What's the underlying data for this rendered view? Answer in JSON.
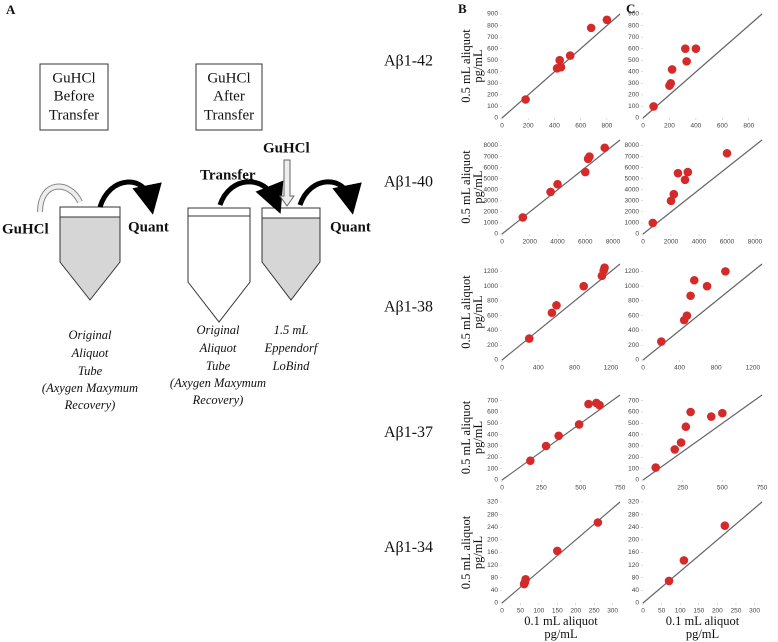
{
  "figure": {
    "panel_labels": [
      "A",
      "B",
      "C"
    ],
    "row_labels": [
      "Aβ1-42",
      "Aβ1-40",
      "Aβ1-38",
      "Aβ1-37",
      "Aβ1-34"
    ]
  },
  "diagram": {
    "box_before": [
      "GuHCl",
      "Before",
      "Transfer"
    ],
    "box_after": [
      "GuHCl",
      "After",
      "Transfer"
    ],
    "guhcl_in": "GuHCl",
    "quant_1": "Quant",
    "transfer": "Transfer",
    "guhcl_add": "GuHCl",
    "quant_2": "Quant",
    "tube_1": [
      "Original",
      "Aliquot",
      "Tube",
      "(Axygen Maxymum",
      "Recovery)"
    ],
    "tube_2": [
      "Original",
      "Aliquot",
      "Tube",
      "(Axygen Maxymum",
      "Recovery)"
    ],
    "tube_3": [
      "1.5 mL",
      "Eppendorf",
      "LoBind"
    ]
  },
  "chart_data": [
    {
      "type": "scatter",
      "ylabel": [
        "0.5 mL aliquot",
        "pg/mL"
      ],
      "color": "#d42a2a",
      "identity_line": true,
      "x": [
        180,
        420,
        440,
        450,
        520,
        680,
        800
      ],
      "values": [
        160,
        430,
        500,
        440,
        540,
        780,
        850
      ],
      "xlim": [
        0,
        900
      ],
      "ylim": [
        0,
        900
      ],
      "xticks": [
        0,
        200,
        400,
        600,
        800
      ],
      "yticks": [
        0,
        100,
        200,
        300,
        400,
        500,
        600,
        700,
        800,
        900
      ]
    },
    {
      "type": "scatter",
      "ylabel": [
        "0.5 mL aliquot",
        "pg/mL"
      ],
      "color": "#d42a2a",
      "identity_line": true,
      "x": [
        1500,
        3500,
        4000,
        6000,
        6200,
        6300,
        7400
      ],
      "values": [
        1500,
        3800,
        4500,
        5600,
        6800,
        7000,
        7800
      ],
      "xlim": [
        0,
        8500
      ],
      "ylim": [
        0,
        8500
      ],
      "xticks": [
        0,
        2000,
        4000,
        6000,
        8000
      ],
      "yticks": [
        0,
        1000,
        2000,
        3000,
        4000,
        5000,
        6000,
        7000,
        8000
      ]
    },
    {
      "type": "scatter",
      "ylabel": [
        "0.5 mL aliquot",
        "pg/mL"
      ],
      "color": "#d42a2a",
      "identity_line": true,
      "x": [
        300,
        550,
        600,
        900,
        1100,
        1120,
        1130
      ],
      "values": [
        290,
        640,
        740,
        1000,
        1140,
        1210,
        1250
      ],
      "xlim": [
        0,
        1300
      ],
      "ylim": [
        0,
        1300
      ],
      "xticks": [
        0,
        400,
        800,
        1200
      ],
      "yticks": [
        0,
        200,
        400,
        600,
        800,
        1000,
        1200
      ]
    },
    {
      "type": "scatter",
      "ylabel": [
        "0.5 mL aliquot",
        "pg/mL"
      ],
      "color": "#d42a2a",
      "identity_line": true,
      "x": [
        180,
        280,
        360,
        490,
        550,
        600,
        620
      ],
      "values": [
        170,
        300,
        390,
        490,
        670,
        680,
        660
      ],
      "xlim": [
        0,
        750
      ],
      "ylim": [
        0,
        750
      ],
      "xticks": [
        0,
        250,
        500,
        750
      ],
      "yticks": [
        0,
        100,
        200,
        300,
        400,
        500,
        600,
        700
      ]
    },
    {
      "type": "scatter",
      "ylabel": [
        "0.5 mL aliquot",
        "pg/mL"
      ],
      "xlabel": [
        "0.1 mL aliquot",
        "pg/mL"
      ],
      "color": "#d42a2a",
      "identity_line": true,
      "x": [
        60,
        62,
        64,
        150,
        260
      ],
      "values": [
        60,
        65,
        75,
        165,
        255
      ],
      "xlim": [
        0,
        320
      ],
      "ylim": [
        0,
        320
      ],
      "xticks": [
        0,
        50,
        100,
        150,
        200,
        250,
        300
      ],
      "yticks": [
        0,
        40,
        80,
        120,
        160,
        200,
        240,
        280,
        320
      ]
    },
    {
      "type": "scatter",
      "color": "#d42a2a",
      "identity_line": true,
      "x": [
        80,
        200,
        210,
        220,
        320,
        330,
        400
      ],
      "values": [
        100,
        280,
        300,
        420,
        600,
        490,
        600
      ],
      "xlim": [
        0,
        900
      ],
      "ylim": [
        0,
        900
      ],
      "xticks": [
        0,
        200,
        400,
        600,
        800
      ],
      "yticks": [
        0,
        100,
        200,
        300,
        400,
        500,
        600,
        700,
        800,
        900
      ]
    },
    {
      "type": "scatter",
      "color": "#d42a2a",
      "identity_line": true,
      "x": [
        700,
        2000,
        2200,
        2500,
        3000,
        3200,
        6000
      ],
      "values": [
        1000,
        3000,
        3600,
        5500,
        4900,
        5600,
        7300
      ],
      "xlim": [
        0,
        8500
      ],
      "ylim": [
        0,
        8500
      ],
      "xticks": [
        0,
        2000,
        4000,
        6000,
        8000
      ],
      "yticks": [
        0,
        1000,
        2000,
        3000,
        4000,
        5000,
        6000,
        7000,
        8000
      ]
    },
    {
      "type": "scatter",
      "color": "#d42a2a",
      "identity_line": true,
      "x": [
        200,
        450,
        480,
        520,
        560,
        700,
        900
      ],
      "values": [
        250,
        540,
        600,
        870,
        1080,
        1000,
        1200
      ],
      "xlim": [
        0,
        1300
      ],
      "ylim": [
        0,
        1300
      ],
      "xticks": [
        0,
        400,
        800,
        1200
      ],
      "yticks": [
        0,
        200,
        400,
        600,
        800,
        1000,
        1200
      ]
    },
    {
      "type": "scatter",
      "color": "#d42a2a",
      "identity_line": true,
      "x": [
        80,
        200,
        240,
        270,
        300,
        430,
        500
      ],
      "values": [
        110,
        270,
        330,
        470,
        600,
        560,
        590
      ],
      "xlim": [
        0,
        750
      ],
      "ylim": [
        0,
        750
      ],
      "xticks": [
        0,
        250,
        500,
        750
      ],
      "yticks": [
        0,
        100,
        200,
        300,
        400,
        500,
        600,
        700
      ]
    },
    {
      "type": "scatter",
      "xlabel": [
        "0.1 mL aliquot",
        "pg/mL"
      ],
      "color": "#d42a2a",
      "identity_line": true,
      "x": [
        70,
        110,
        220
      ],
      "values": [
        70,
        135,
        245
      ],
      "xlim": [
        0,
        320
      ],
      "ylim": [
        0,
        320
      ],
      "xticks": [
        0,
        50,
        100,
        150,
        200,
        250,
        300
      ],
      "yticks": [
        0,
        40,
        80,
        120,
        160,
        200,
        240,
        280,
        320
      ]
    }
  ]
}
